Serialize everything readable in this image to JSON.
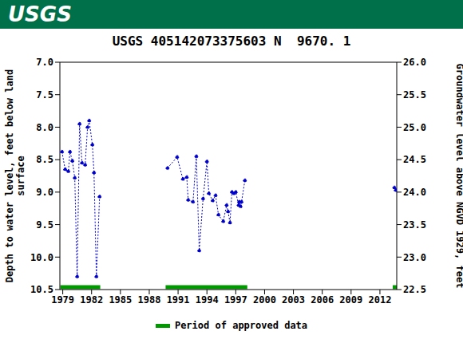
{
  "header": "USGS",
  "chart_data": {
    "type": "line",
    "title": "USGS 405142073375603 N  9670. 1",
    "y_label": "Depth to water level, feet below land surface",
    "y2_label": "Groundwater level above NGVD 1929, feet",
    "x": [
      1978.92,
      1979.25,
      1979.58,
      1979.75,
      1980.0,
      1980.25,
      1980.5,
      1980.75,
      1981.0,
      1981.33,
      1981.58,
      1981.75,
      1982.08,
      1982.25,
      1982.5,
      1982.83,
      1986.0,
      1989.9,
      1990.9,
      1991.5,
      1991.9,
      1992.05,
      1992.55,
      1992.9,
      1993.2,
      1993.6,
      1994.0,
      1994.2,
      1994.6,
      1994.9,
      1995.2,
      1995.7,
      1996.05,
      1996.2,
      1996.4,
      1996.6,
      1996.8,
      1997.0,
      1997.3,
      1997.35,
      1997.5,
      1997.6,
      1997.95,
      2005.0,
      2013.5,
      2013.65
    ],
    "values": [
      8.38,
      8.65,
      8.68,
      8.38,
      8.52,
      8.78,
      10.3,
      7.95,
      8.55,
      8.58,
      8.0,
      7.9,
      8.27,
      8.7,
      10.3,
      9.07,
      null,
      8.63,
      8.46,
      8.8,
      8.77,
      9.12,
      9.15,
      8.45,
      9.9,
      9.1,
      8.53,
      9.02,
      9.13,
      9.05,
      9.35,
      9.45,
      9.2,
      9.3,
      9.47,
      9.0,
      9.02,
      9.0,
      9.2,
      9.15,
      9.22,
      9.15,
      8.82,
      null,
      8.93,
      8.97
    ],
    "color": "#0000cc",
    "marker": "circle",
    "line_style": "dotted",
    "xlim": [
      1978.7,
      2013.75
    ],
    "xticks": [
      1979,
      1982,
      1985,
      1988,
      1991,
      1994,
      1997,
      2000,
      2003,
      2006,
      2009,
      2012
    ],
    "ylim": [
      7.0,
      10.5
    ],
    "yticks": [
      {
        "value": 7.0,
        "label": "7.0"
      },
      7.5,
      {
        "value": 8.0,
        "label": "8.0"
      },
      8.5,
      {
        "value": 9.0,
        "label": "9.0"
      },
      9.5,
      {
        "value": 10.0,
        "label": "10.0"
      },
      10.5
    ],
    "y2lim": [
      22.5,
      26.0
    ],
    "y2ticks": [
      22.5,
      {
        "value": 23.0,
        "label": "23.0"
      },
      23.5,
      {
        "value": 24.0,
        "label": "24.0"
      },
      24.5,
      {
        "value": 25.0,
        "label": "25.0"
      },
      25.5,
      {
        "value": 26.0,
        "label": "26.0"
      }
    ],
    "approved_periods": {
      "name": "Period of approved data",
      "color": "#009900",
      "ranges": [
        [
          1978.75,
          1982.9
        ],
        [
          1989.7,
          1998.2
        ],
        [
          2013.33,
          2013.75
        ]
      ]
    }
  }
}
